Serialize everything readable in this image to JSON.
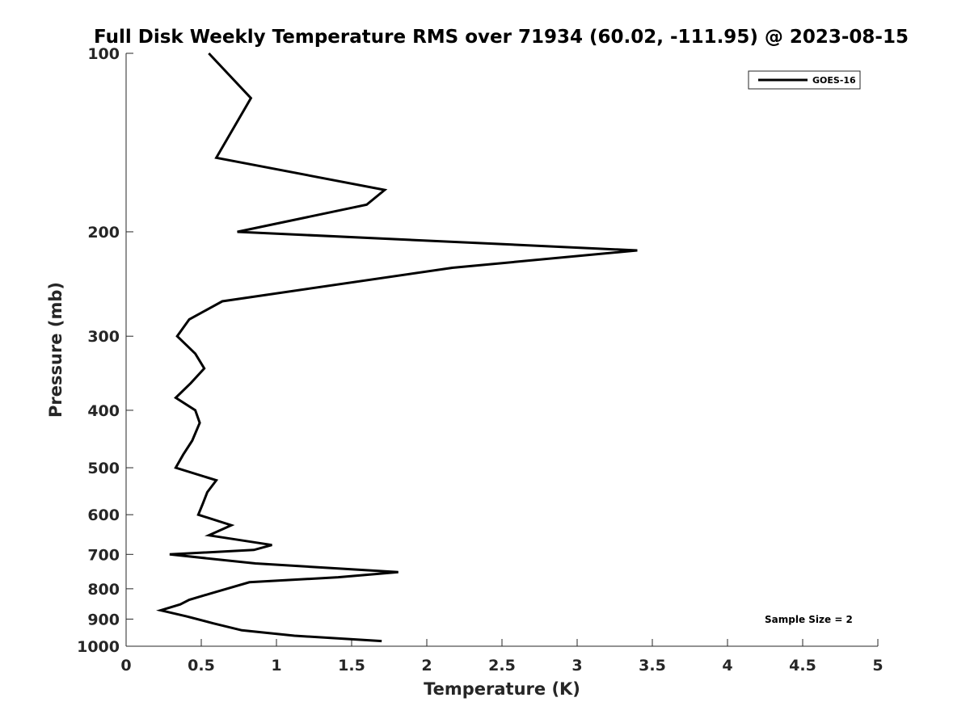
{
  "chart_data": {
    "type": "line",
    "title": "Full Disk Weekly Temperature RMS over 71934 (60.02, -111.95) @ 2023-08-15",
    "xlabel": "Temperature (K)",
    "ylabel": "Pressure (mb)",
    "xlim": [
      0,
      5
    ],
    "ylim": [
      100,
      1000
    ],
    "y_scale": "log",
    "y_reversed": true,
    "x_ticks": [
      0,
      0.5,
      1,
      1.5,
      2,
      2.5,
      3,
      3.5,
      4,
      4.5,
      5
    ],
    "x_tick_labels": [
      "0",
      "0.5",
      "1",
      "1.5",
      "2",
      "2.5",
      "3",
      "3.5",
      "4",
      "4.5",
      "5"
    ],
    "y_ticks": [
      100,
      200,
      300,
      400,
      500,
      600,
      700,
      800,
      900,
      1000
    ],
    "y_tick_labels": [
      "100",
      "200",
      "300",
      "400",
      "500",
      "600",
      "700",
      "800",
      "900",
      "1000"
    ],
    "grid": false,
    "legend_position": "top-right",
    "annotation": "Sample Size = 2",
    "series": [
      {
        "name": "GOES-16",
        "color": "#000000",
        "points": [
          [
            0.55,
            100
          ],
          [
            0.83,
            119
          ],
          [
            0.6,
            150
          ],
          [
            1.72,
            170
          ],
          [
            1.6,
            180
          ],
          [
            0.74,
            200
          ],
          [
            3.4,
            215
          ],
          [
            2.17,
            230
          ],
          [
            0.64,
            262
          ],
          [
            0.42,
            281
          ],
          [
            0.34,
            300
          ],
          [
            0.46,
            321
          ],
          [
            0.52,
            340
          ],
          [
            0.43,
            360
          ],
          [
            0.33,
            381
          ],
          [
            0.46,
            400
          ],
          [
            0.49,
            420
          ],
          [
            0.44,
            450
          ],
          [
            0.38,
            475
          ],
          [
            0.33,
            500
          ],
          [
            0.6,
            525
          ],
          [
            0.54,
            550
          ],
          [
            0.51,
            575
          ],
          [
            0.48,
            600
          ],
          [
            0.7,
            625
          ],
          [
            0.55,
            650
          ],
          [
            0.97,
            675
          ],
          [
            0.85,
            688
          ],
          [
            0.29,
            700
          ],
          [
            0.86,
            725
          ],
          [
            1.81,
            750
          ],
          [
            1.41,
            765
          ],
          [
            0.82,
            780
          ],
          [
            0.56,
            815
          ],
          [
            0.42,
            835
          ],
          [
            0.36,
            850
          ],
          [
            0.23,
            870
          ],
          [
            0.4,
            890
          ],
          [
            0.58,
            915
          ],
          [
            0.77,
            940
          ],
          [
            1.12,
            960
          ],
          [
            1.7,
            980
          ]
        ]
      }
    ]
  }
}
